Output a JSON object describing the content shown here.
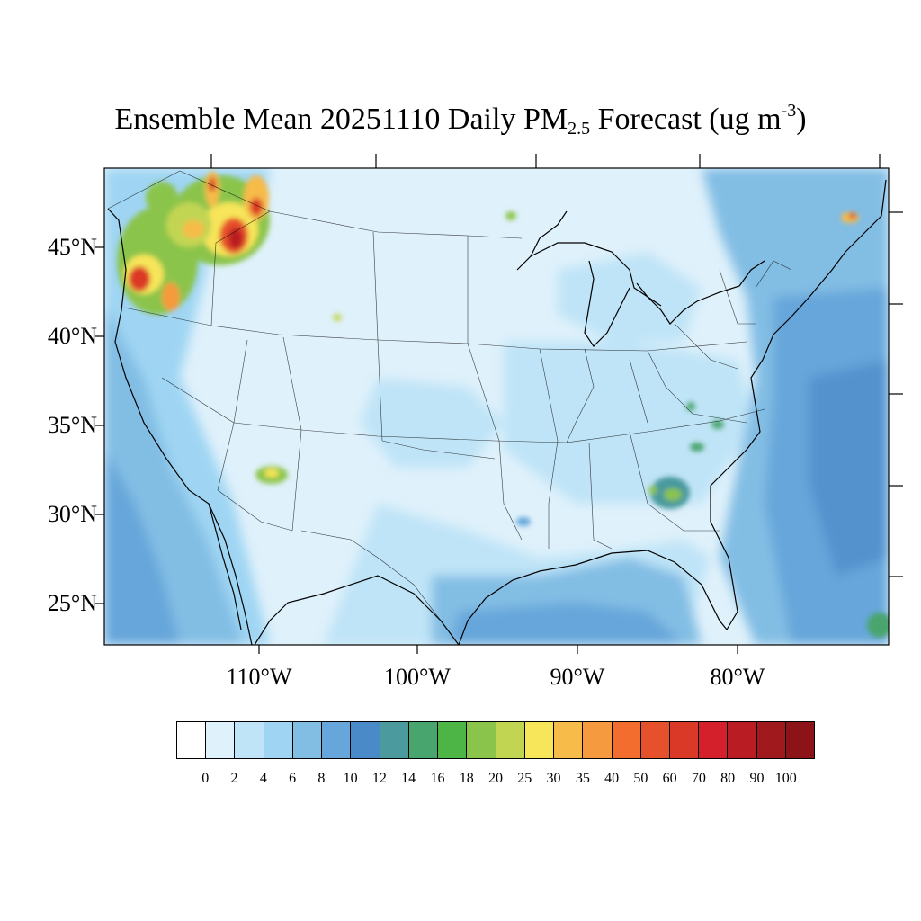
{
  "title": {
    "main": "Ensemble Mean 20251110 Daily PM",
    "subscript": "2.5",
    "middle": " Forecast (ug m",
    "superscript": "-3",
    "end": ")"
  },
  "map": {
    "region": "Continental United States",
    "variable": "Daily PM2.5",
    "units": "ug m-3",
    "background_level": "2-4",
    "latitude_labels": [
      "45°N",
      "40°N",
      "35°N",
      "30°N",
      "25°N"
    ],
    "longitude_labels": [
      "110°W",
      "100°W",
      "90°W",
      "80°W"
    ],
    "hotspots": [
      {
        "region": "Western Washington",
        "level": "40-70"
      },
      {
        "region": "Northern Idaho / Montana",
        "level": "50-100"
      },
      {
        "region": "Western Oregon",
        "level": "40-90"
      },
      {
        "region": "Northern California",
        "level": "20-35"
      },
      {
        "region": "Central Arizona",
        "level": "20-30"
      },
      {
        "region": "Georgia",
        "level": "16-20"
      },
      {
        "region": "Minnesota / Ontario border",
        "level": "18-25"
      },
      {
        "region": "New Brunswick",
        "level": "25-40"
      }
    ]
  },
  "colorbar": {
    "labels": [
      "0",
      "2",
      "4",
      "6",
      "8",
      "10",
      "12",
      "14",
      "16",
      "18",
      "20",
      "25",
      "30",
      "35",
      "40",
      "50",
      "60",
      "70",
      "80",
      "90",
      "100"
    ],
    "colors": [
      "#ffffff",
      "#dff1fb",
      "#bfe4f7",
      "#9fd5f3",
      "#82bde4",
      "#66a6da",
      "#4a8ac8",
      "#4a9a9e",
      "#48a56d",
      "#4db446",
      "#8bc44b",
      "#c2d553",
      "#f7e55a",
      "#f7bb49",
      "#f59a3e",
      "#f26d2e",
      "#e6502a",
      "#db3928",
      "#d4202a",
      "#b91c22",
      "#a0191d",
      "#8c1418"
    ]
  }
}
